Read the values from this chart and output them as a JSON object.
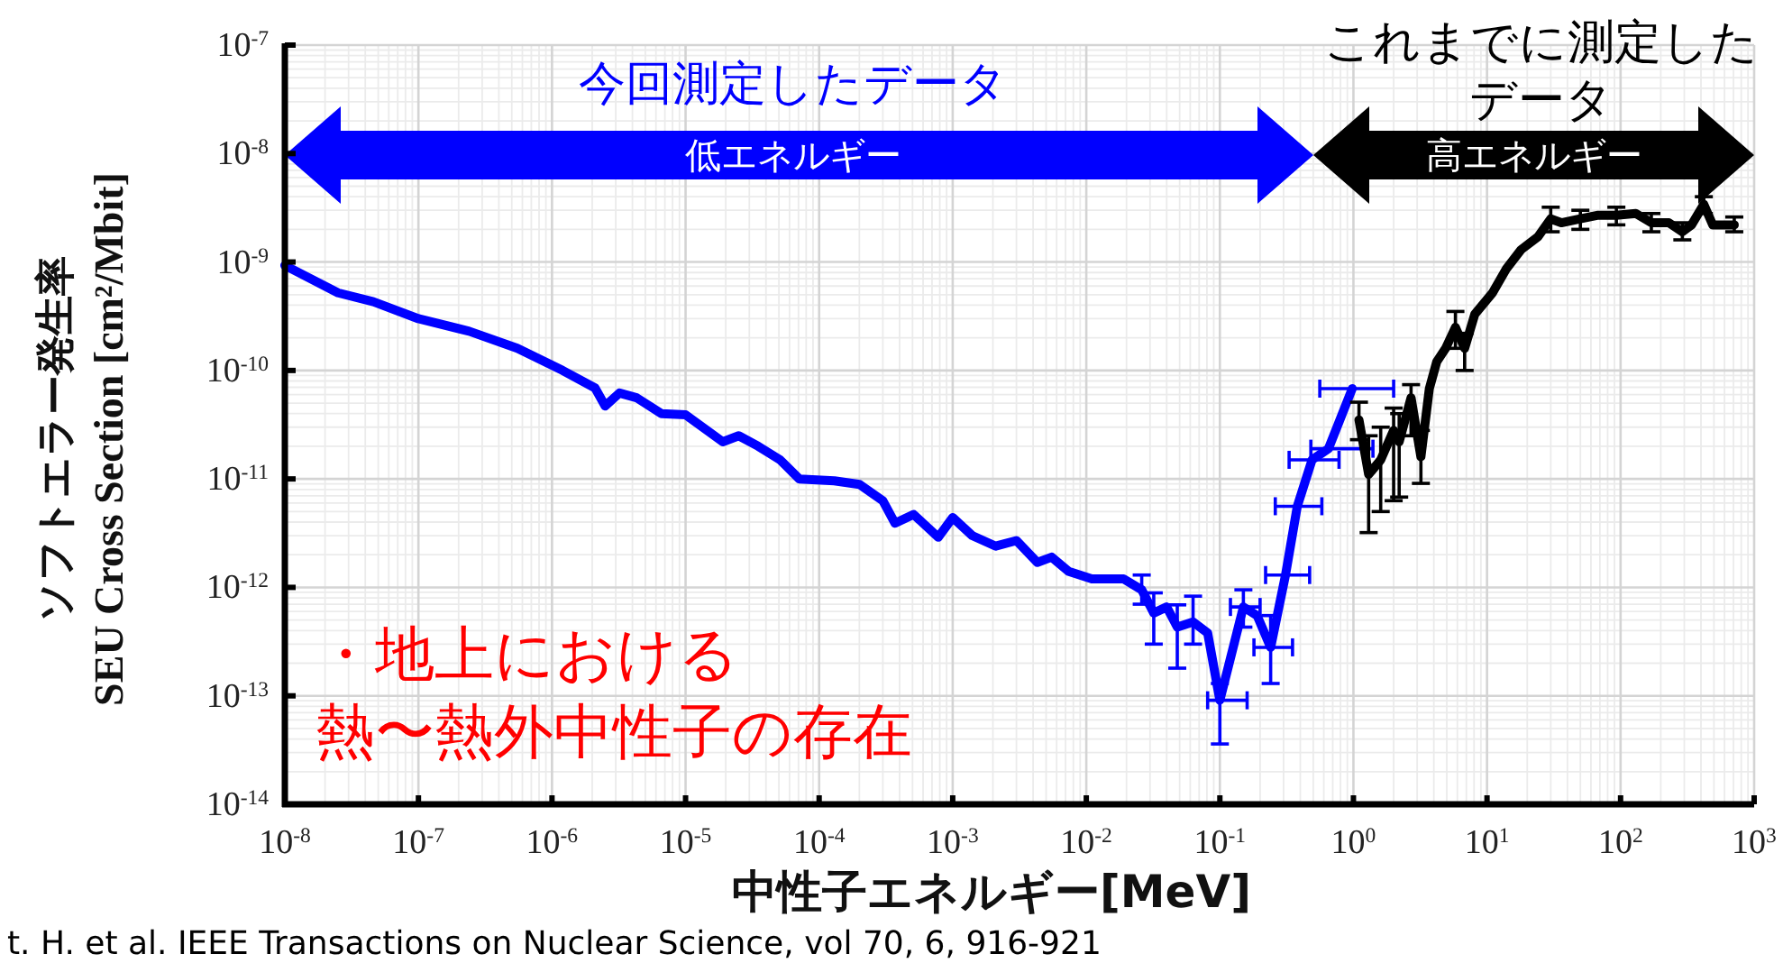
{
  "chart_data": {
    "type": "line",
    "log": "xy",
    "xlabel": "中性子エネルギー[MeV]",
    "ylabel": "ソフトエラー発生率\nSEU Cross Section [cm²/Mbit]",
    "xlim": [
      1e-08,
      1000
    ],
    "ylim": [
      1e-14,
      1e-07
    ],
    "xticks": [
      {
        "value": 1e-08,
        "label": "10$^{-8}$"
      },
      {
        "value": 1e-07,
        "label": "10$^{-7}$"
      },
      {
        "value": 1e-06,
        "label": "10$^{-6}$"
      },
      {
        "value": 1e-05,
        "label": "10$^{-5}$"
      },
      {
        "value": 0.0001,
        "label": "10$^{-4}$"
      },
      {
        "value": 0.001,
        "label": "10$^{-3}$"
      },
      {
        "value": 0.01,
        "label": "10$^{-2}$"
      },
      {
        "value": 0.1,
        "label": "10$^{-1}$"
      },
      {
        "value": 1,
        "label": "10$^{0}$"
      },
      {
        "value": 10,
        "label": "10$^{1}$"
      },
      {
        "value": 100,
        "label": "10$^{2}$"
      },
      {
        "value": 1000,
        "label": "10$^{3}$"
      }
    ],
    "yticks": [
      {
        "value": 1e-14,
        "label": "10$^{-14}$"
      },
      {
        "value": 1e-13,
        "label": "10$^{-13}$"
      },
      {
        "value": 1e-12,
        "label": "10$^{-12}$"
      },
      {
        "value": 1e-11,
        "label": "10$^{-11}$"
      },
      {
        "value": 1e-10,
        "label": "10$^{-10}$"
      },
      {
        "value": 1e-09,
        "label": "10$^{-9}$"
      },
      {
        "value": 1e-08,
        "label": "10$^{-8}$"
      },
      {
        "value": 1e-07,
        "label": "10$^{-7}$"
      }
    ],
    "grid": true,
    "line_style": "solid",
    "series": [
      {
        "color": "#0000ff",
        "x": [
          1e-08,
          2.5e-08,
          4.6e-08,
          1e-07,
          2.4e-07,
          5.5e-07,
          1.2e-06,
          2.1e-06,
          2.5e-06,
          3.2e-06,
          4.3e-06,
          6.6e-06,
          1e-05,
          1.9e-05,
          2.5e-05,
          3.5e-05,
          5.1e-05,
          7.1e-05,
          0.00013,
          0.0002,
          0.0003,
          0.00037,
          0.00051,
          0.00078,
          0.001,
          0.0014,
          0.0021,
          0.003,
          0.0043,
          0.0055,
          0.0074,
          0.011,
          0.019,
          0.026,
          0.032,
          0.04,
          0.048,
          0.063,
          0.081,
          0.1,
          0.15,
          0.19,
          0.24,
          0.31,
          0.38,
          0.49,
          0.65,
          0.98
        ],
        "values": [
          9.3e-10,
          5.2e-10,
          4.3e-10,
          3e-10,
          2.3e-10,
          1.6e-10,
          1e-10,
          6.9e-11,
          4.7e-11,
          6.2e-11,
          5.6e-11,
          4e-11,
          3.9e-11,
          2.2e-11,
          2.5e-11,
          2e-11,
          1.5e-11,
          1e-11,
          9.6e-12,
          8.9e-12,
          6.3e-12,
          3.9e-12,
          4.7e-12,
          2.9e-12,
          4.4e-12,
          3e-12,
          2.4e-12,
          2.7e-12,
          1.7e-12,
          1.9e-12,
          1.4e-12,
          1.2e-12,
          1.2e-12,
          9.5e-13,
          5.8e-13,
          6.6e-13,
          4.3e-13,
          4.8e-13,
          3.8e-13,
          9.1e-14,
          6.6e-13,
          5.5e-13,
          2.8e-13,
          1.3e-12,
          5.6e-12,
          1.5e-11,
          1.9e-11,
          6.8e-11
        ],
        "errors": [
          null,
          null,
          null,
          null,
          null,
          null,
          null,
          null,
          null,
          null,
          null,
          null,
          null,
          null,
          null,
          null,
          null,
          null,
          null,
          null,
          null,
          null,
          null,
          null,
          null,
          null,
          null,
          null,
          null,
          null,
          null,
          null,
          null,
          [
            7e-13,
            1.3e-12
          ],
          [
            3e-13,
            8.9e-13
          ],
          null,
          [
            1.8e-13,
            6.9e-13
          ],
          [
            3e-13,
            8.3e-13
          ],
          null,
          [
            3.6e-14,
            1.3e-13
          ],
          [
            4.3e-13,
            9.5e-13
          ],
          null,
          [
            1.3e-13,
            5.5e-13
          ],
          null,
          null,
          null,
          null,
          null
        ],
        "xerrors": [
          null,
          null,
          null,
          null,
          null,
          null,
          null,
          null,
          null,
          null,
          null,
          null,
          null,
          null,
          null,
          null,
          null,
          null,
          null,
          null,
          null,
          null,
          null,
          null,
          null,
          null,
          null,
          null,
          null,
          null,
          null,
          null,
          null,
          null,
          null,
          null,
          null,
          null,
          null,
          [
            0.081,
            0.16
          ],
          [
            0.12,
            0.2
          ],
          null,
          [
            0.18,
            0.35
          ],
          [
            0.22,
            0.47
          ],
          [
            0.26,
            0.58
          ],
          [
            0.33,
            0.78
          ],
          [
            0.48,
            1.4
          ],
          [
            0.56,
            2.0
          ]
        ]
      },
      {
        "color": "#000000",
        "x": [
          1.1,
          1.3,
          1.6,
          2.0,
          2.2,
          2.7,
          3.2,
          3.7,
          4.2,
          4.9,
          5.8,
          6.8,
          8.1,
          11,
          14,
          18,
          24,
          30,
          36,
          50,
          68,
          93,
          130,
          170,
          230,
          290,
          340,
          420,
          490,
          710
        ],
        "values": [
          3.5e-11,
          1.1e-11,
          1.5e-11,
          2.8e-11,
          2.2e-11,
          5.6e-11,
          1.6e-11,
          6.8e-11,
          1.2e-10,
          1.6e-10,
          2.5e-10,
          1.6e-10,
          3.3e-10,
          5.2e-10,
          8.7e-10,
          1.3e-09,
          1.7e-09,
          2.5e-09,
          2.3e-09,
          2.5e-09,
          2.7e-09,
          2.7e-09,
          2.8e-09,
          2.3e-09,
          2.3e-09,
          1.9e-09,
          2.2e-09,
          3.4e-09,
          2.2e-09,
          2.2e-09
        ],
        "errors": [
          [
            2.3e-11,
            5.1e-11
          ],
          [
            3.2e-12,
            2.5e-11
          ],
          [
            5e-12,
            3e-11
          ],
          [
            6.3e-12,
            4.5e-11
          ],
          [
            6.8e-12,
            4e-11
          ],
          [
            2.5e-11,
            7.4e-11
          ],
          [
            9.1e-12,
            2.8e-11
          ],
          null,
          null,
          null,
          [
            1.6e-10,
            3.5e-10
          ],
          [
            1e-10,
            2.2e-10
          ],
          null,
          null,
          null,
          null,
          null,
          [
            1.9e-09,
            3.2e-09
          ],
          null,
          [
            2e-09,
            3e-09
          ],
          null,
          [
            2.2e-09,
            3.2e-09
          ],
          null,
          [
            1.9e-09,
            2.8e-09
          ],
          null,
          [
            1.6e-09,
            2.3e-09
          ],
          null,
          [
            2.8e-09,
            4e-09
          ],
          null,
          [
            1.9e-09,
            2.6e-09
          ]
        ]
      }
    ],
    "annotations": [
      "今回測定したデータ",
      "低エネルギー",
      "これまでに測定したデータ",
      "高エネルギー",
      "・地上における熱〜熱外中性子の存在",
      "t. H. et al. IEEE Transactions on Nuclear Science, vol 70, 6, 916-921"
    ]
  }
}
